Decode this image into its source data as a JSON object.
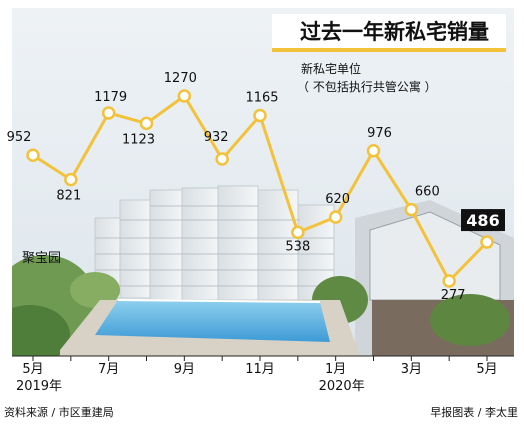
{
  "chart_data": {
    "type": "line",
    "title": "过去一年新私宅销量",
    "subtitle_line1": "新私宅单位",
    "subtitle_line2": "（ 不包括执行共管公寓 ）",
    "x": [
      "2019-05",
      "2019-06",
      "2019-07",
      "2019-08",
      "2019-09",
      "2019-10",
      "2019-11",
      "2019-12",
      "2020-01",
      "2020-02",
      "2020-03",
      "2020-04",
      "2020-05"
    ],
    "series": [
      {
        "values": [
          952,
          821,
          1179,
          1123,
          1270,
          932,
          1165,
          538,
          620,
          976,
          660,
          277,
          486
        ]
      }
    ],
    "value_labels": [
      "952",
      "821",
      "1179",
      "1123",
      "1270",
      "932",
      "1165",
      "538",
      "620",
      "976",
      "660",
      "277",
      "486"
    ],
    "tick_labels": [
      {
        "month": "5月",
        "year": "2019年"
      },
      {
        "month": "7月",
        "year": ""
      },
      {
        "month": "9月",
        "year": ""
      },
      {
        "month": "11月",
        "year": ""
      },
      {
        "month": "1月",
        "year": "2020年"
      },
      {
        "month": "3月",
        "year": ""
      },
      {
        "month": "5月",
        "year": ""
      }
    ],
    "ylim": [
      200,
      1300
    ],
    "grid": false,
    "line_color": "#f2c23a",
    "marker_fill": "#ffffff",
    "highlight_label_bg": "#111111",
    "photo_caption": "聚宝园",
    "source_left": "资料来源 / 市区重建局",
    "source_right": "早报图表 / 李太里"
  }
}
